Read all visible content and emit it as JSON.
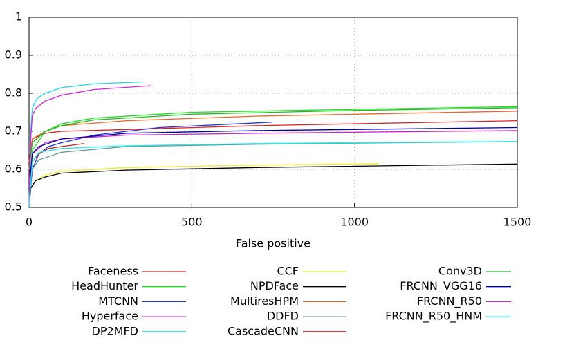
{
  "chart_data": {
    "type": "line",
    "xlabel": "False positive",
    "xlim": [
      0,
      1500
    ],
    "xticks": [
      0,
      500,
      1000,
      1500
    ],
    "ylim": [
      0.5,
      1
    ],
    "yticks": [
      0.5,
      0.6,
      0.7,
      0.8,
      0.9,
      1
    ],
    "grid": true,
    "series": [
      {
        "name": "Faceness",
        "color": "#dd2222",
        "x": [
          0,
          10,
          50,
          100,
          300,
          700,
          1500
        ],
        "values": [
          0.62,
          0.68,
          0.695,
          0.7,
          0.705,
          0.715,
          0.728
        ]
      },
      {
        "name": "HeadHunter",
        "color": "#22dd22",
        "x": [
          0,
          10,
          50,
          100,
          200,
          500,
          1000,
          1500
        ],
        "values": [
          0.55,
          0.65,
          0.7,
          0.72,
          0.735,
          0.75,
          0.758,
          0.765
        ]
      },
      {
        "name": "MTCNN",
        "color": "#2233dd",
        "x": [
          0,
          10,
          30,
          60,
          100,
          200,
          400,
          745
        ],
        "values": [
          0.5,
          0.6,
          0.64,
          0.66,
          0.67,
          0.69,
          0.71,
          0.724
        ]
      },
      {
        "name": "Hyperface",
        "color": "#cc22cc",
        "x": [
          0,
          10,
          50,
          100,
          300,
          700,
          1500
        ],
        "values": [
          0.55,
          0.64,
          0.67,
          0.68,
          0.69,
          0.695,
          0.702
        ]
      },
      {
        "name": "DP2MFD",
        "color": "#22dddd",
        "x": [
          0,
          5,
          10,
          20,
          30,
          50,
          100,
          200,
          350
        ],
        "values": [
          0.5,
          0.7,
          0.76,
          0.78,
          0.79,
          0.8,
          0.815,
          0.825,
          0.83
        ]
      },
      {
        "name": "CCF",
        "color": "#eeee22",
        "x": [
          0,
          5,
          20,
          50,
          100,
          300,
          600,
          1075
        ],
        "values": [
          0.5,
          0.55,
          0.57,
          0.585,
          0.595,
          0.605,
          0.61,
          0.615
        ]
      },
      {
        "name": "NPDFace",
        "color": "#000000",
        "x": [
          0,
          5,
          20,
          50,
          100,
          300,
          700,
          1500
        ],
        "values": [
          0.5,
          0.55,
          0.57,
          0.58,
          0.59,
          0.598,
          0.605,
          0.614
        ]
      },
      {
        "name": "MultiresHPM",
        "color": "#ee6622",
        "x": [
          0,
          10,
          50,
          100,
          300,
          700,
          1000,
          1500
        ],
        "values": [
          0.6,
          0.68,
          0.7,
          0.715,
          0.728,
          0.74,
          0.745,
          0.753
        ]
      },
      {
        "name": "DDFD",
        "color": "#669999",
        "x": [
          0,
          10,
          30,
          100,
          300,
          700,
          1500
        ],
        "values": [
          0.55,
          0.6,
          0.625,
          0.645,
          0.66,
          0.666,
          0.673
        ]
      },
      {
        "name": "CascadeCNN",
        "color": "#cc2222",
        "x": [
          0,
          10,
          30,
          60,
          100,
          170
        ],
        "values": [
          0.55,
          0.62,
          0.64,
          0.655,
          0.66,
          0.668
        ]
      },
      {
        "name": "Conv3D",
        "color": "#22bb22",
        "x": [
          0,
          10,
          50,
          100,
          200,
          500,
          1000,
          1500
        ],
        "values": [
          0.6,
          0.67,
          0.7,
          0.715,
          0.73,
          0.745,
          0.755,
          0.762
        ]
      },
      {
        "name": "FRCNN_VGG16",
        "color": "#0000aa",
        "x": [
          0,
          10,
          30,
          100,
          300,
          700,
          1500
        ],
        "values": [
          0.55,
          0.64,
          0.66,
          0.68,
          0.695,
          0.702,
          0.71
        ]
      },
      {
        "name": "FRCNN_R50",
        "color": "#dd22dd",
        "x": [
          0,
          5,
          10,
          20,
          50,
          100,
          200,
          375
        ],
        "values": [
          0.5,
          0.68,
          0.74,
          0.76,
          0.78,
          0.795,
          0.81,
          0.82
        ]
      },
      {
        "name": "FRCNN_R50_HNM",
        "color": "#22eeee",
        "x": [
          0,
          10,
          30,
          100,
          300,
          700,
          1500
        ],
        "values": [
          0.5,
          0.62,
          0.645,
          0.655,
          0.662,
          0.668,
          0.673
        ]
      }
    ]
  }
}
